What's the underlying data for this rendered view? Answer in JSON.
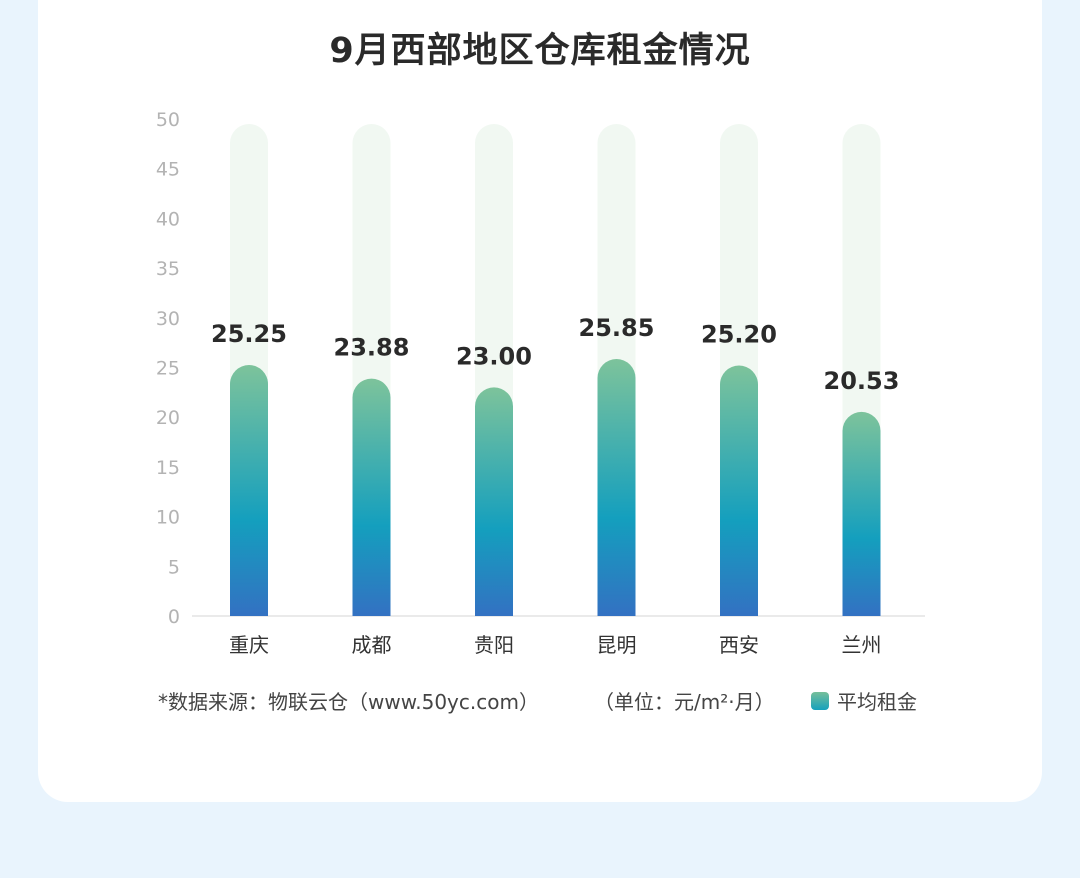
{
  "chart_data": {
    "type": "bar",
    "title": "9月西部地区仓库租金情况",
    "categories": [
      "重庆",
      "成都",
      "贵阳",
      "昆明",
      "西安",
      "兰州"
    ],
    "series": [
      {
        "name": "平均租金",
        "values": [
          25.25,
          23.88,
          23.0,
          25.85,
          25.2,
          20.53
        ]
      }
    ],
    "value_labels": [
      "25.25",
      "23.88",
      "23.00",
      "25.85",
      "25.20",
      "20.53"
    ],
    "ylim": [
      0,
      50
    ],
    "yticks": [
      "0",
      "5",
      "10",
      "15",
      "20",
      "25",
      "30",
      "35",
      "40",
      "45",
      "50"
    ],
    "xlabel": "",
    "ylabel": "",
    "grid": false,
    "legend_position": "bottom-right",
    "colors": {
      "bar_top": "#7dc39b",
      "bar_mid": "#149fbe",
      "bar_bottom": "#3371c2",
      "track": "#f1f8f2"
    }
  },
  "footer": {
    "source": "*数据来源：物联云仓（www.50yc.com）",
    "unit": "（单位：元/m²·月）",
    "legend_label": "平均租金"
  }
}
